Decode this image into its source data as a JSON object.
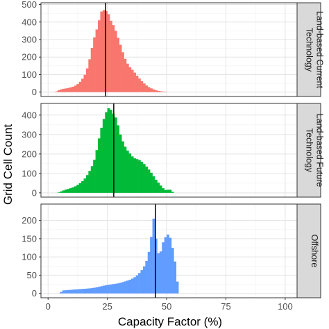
{
  "chart_data": [
    {
      "type": "bar",
      "panel": "Land-based Current Technology",
      "strip_lines": [
        "Land-based Current",
        "Technology"
      ],
      "color": "#F8766D",
      "xlim": [
        -3,
        105
      ],
      "ylim": [
        -25,
        510
      ],
      "yticks": [
        0,
        100,
        200,
        300,
        400,
        500
      ],
      "vline": 24.3,
      "peaks": [
        [
          3,
          0
        ],
        [
          4,
          8
        ],
        [
          6,
          18
        ],
        [
          8,
          22
        ],
        [
          10,
          28
        ],
        [
          12,
          40
        ],
        [
          14,
          65
        ],
        [
          16,
          110
        ],
        [
          17,
          160
        ],
        [
          18,
          215
        ],
        [
          19,
          290
        ],
        [
          20,
          335
        ],
        [
          21,
          380
        ],
        [
          22,
          440
        ],
        [
          23,
          480
        ],
        [
          24,
          455
        ],
        [
          25,
          470
        ],
        [
          26,
          420
        ],
        [
          27,
          395
        ],
        [
          28,
          370
        ],
        [
          29,
          330
        ],
        [
          30,
          290
        ],
        [
          31,
          250
        ],
        [
          32,
          205
        ],
        [
          33,
          175
        ],
        [
          34,
          150
        ],
        [
          36,
          120
        ],
        [
          38,
          85
        ],
        [
          40,
          55
        ],
        [
          42,
          32
        ],
        [
          44,
          18
        ],
        [
          46,
          8
        ],
        [
          48,
          4
        ],
        [
          50,
          0
        ]
      ]
    },
    {
      "type": "bar",
      "panel": "Land-based Future Technology",
      "strip_lines": [
        "Land-based Future",
        "Technology"
      ],
      "color": "#00BA38",
      "xlim": [
        -3,
        105
      ],
      "ylim": [
        -22,
        460
      ],
      "yticks": [
        0,
        100,
        200,
        300,
        400
      ],
      "vline": 27.7,
      "peaks": [
        [
          4,
          0
        ],
        [
          5,
          5
        ],
        [
          7,
          15
        ],
        [
          9,
          22
        ],
        [
          11,
          30
        ],
        [
          13,
          45
        ],
        [
          15,
          65
        ],
        [
          17,
          100
        ],
        [
          19,
          150
        ],
        [
          20,
          190
        ],
        [
          21,
          250
        ],
        [
          22,
          310
        ],
        [
          23,
          360
        ],
        [
          24,
          400
        ],
        [
          25,
          430
        ],
        [
          26,
          440
        ],
        [
          27,
          415
        ],
        [
          28,
          400
        ],
        [
          29,
          375
        ],
        [
          30,
          320
        ],
        [
          31,
          280
        ],
        [
          32,
          250
        ],
        [
          33,
          225
        ],
        [
          34,
          210
        ],
        [
          35,
          195
        ],
        [
          36,
          180
        ],
        [
          37,
          175
        ],
        [
          38,
          172
        ],
        [
          39,
          165
        ],
        [
          40,
          155
        ],
        [
          41,
          142
        ],
        [
          42,
          128
        ],
        [
          43,
          112
        ],
        [
          44,
          95
        ],
        [
          45,
          75
        ],
        [
          46,
          60
        ],
        [
          47,
          45
        ],
        [
          48,
          30
        ],
        [
          49,
          18
        ],
        [
          50,
          10
        ],
        [
          51,
          22
        ],
        [
          52,
          10
        ],
        [
          53,
          0
        ]
      ]
    },
    {
      "type": "bar",
      "panel": "Offshore",
      "strip_lines": [
        "Offshore"
      ],
      "color": "#619CFF",
      "xlim": [
        -3,
        105
      ],
      "ylim": [
        -12,
        245
      ],
      "yticks": [
        0,
        50,
        100,
        150,
        200
      ],
      "vline": 45.3,
      "peaks": [
        [
          5,
          0
        ],
        [
          6,
          8
        ],
        [
          10,
          10
        ],
        [
          14,
          12
        ],
        [
          18,
          14
        ],
        [
          20,
          16
        ],
        [
          22,
          19
        ],
        [
          24,
          22
        ],
        [
          26,
          24
        ],
        [
          28,
          26
        ],
        [
          30,
          28
        ],
        [
          32,
          32
        ],
        [
          34,
          36
        ],
        [
          36,
          42
        ],
        [
          38,
          52
        ],
        [
          40,
          68
        ],
        [
          41,
          80
        ],
        [
          42,
          98
        ],
        [
          43,
          130
        ],
        [
          43.5,
          155
        ],
        [
          44,
          180
        ],
        [
          44.5,
          205
        ],
        [
          45,
          240
        ],
        [
          45.5,
          150
        ],
        [
          46,
          120
        ],
        [
          47,
          100
        ],
        [
          48,
          130
        ],
        [
          49,
          150
        ],
        [
          50,
          158
        ],
        [
          51,
          165
        ],
        [
          52,
          140
        ],
        [
          53,
          110
        ],
        [
          54,
          65
        ],
        [
          55,
          0
        ]
      ]
    }
  ],
  "axes": {
    "xlabel": "Capacity Factor (%)",
    "ylabel": "Grid Cell Count",
    "xticks": [
      0,
      25,
      50,
      75,
      100
    ]
  }
}
